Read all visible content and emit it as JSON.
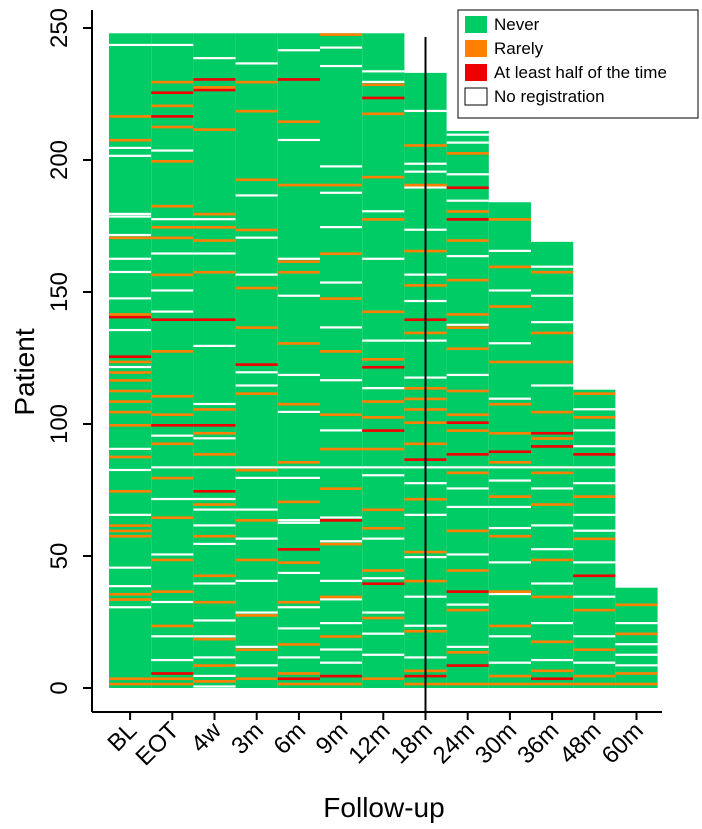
{
  "chart_data": {
    "type": "heatmap",
    "xlabel": "Follow-up",
    "ylabel": "Patient",
    "x_categories": [
      "BL",
      "EOT",
      "4w",
      "3m",
      "6m",
      "9m",
      "12m",
      "18m",
      "24m",
      "30m",
      "36m",
      "48m",
      "60m"
    ],
    "y_ticks": [
      0,
      50,
      100,
      150,
      200,
      250
    ],
    "ylim": [
      0,
      250
    ],
    "patients_per_timepoint": [
      248,
      248,
      248,
      248,
      248,
      248,
      248,
      233,
      211,
      184,
      169,
      113,
      38
    ],
    "reference_line_at": "18m",
    "legend_position": "top-right",
    "legend": [
      {
        "key": "never",
        "label": "Never",
        "color": "#00CC66"
      },
      {
        "key": "rarely",
        "label": "Rarely",
        "color": "#FF8000"
      },
      {
        "key": "half",
        "label": "At least half of the time",
        "color": "#EE0000"
      },
      {
        "key": "none",
        "label": "No registration",
        "color": "#FFFFFF"
      }
    ],
    "cells_rarely": [
      [
        0,
        2
      ],
      [
        0,
        4
      ],
      [
        0,
        34
      ],
      [
        0,
        36
      ],
      [
        0,
        58
      ],
      [
        0,
        60
      ],
      [
        0,
        62
      ],
      [
        0,
        75
      ],
      [
        0,
        88
      ],
      [
        0,
        100
      ],
      [
        0,
        105
      ],
      [
        0,
        109
      ],
      [
        0,
        113
      ],
      [
        0,
        117
      ],
      [
        0,
        120
      ],
      [
        0,
        124
      ],
      [
        0,
        142
      ],
      [
        0,
        171
      ],
      [
        0,
        208
      ],
      [
        0,
        217
      ],
      [
        1,
        2
      ],
      [
        1,
        4
      ],
      [
        1,
        24
      ],
      [
        1,
        37
      ],
      [
        1,
        49
      ],
      [
        1,
        65
      ],
      [
        1,
        80
      ],
      [
        1,
        93
      ],
      [
        1,
        104
      ],
      [
        1,
        111
      ],
      [
        1,
        128
      ],
      [
        1,
        157
      ],
      [
        1,
        171
      ],
      [
        1,
        175
      ],
      [
        1,
        178
      ],
      [
        1,
        183
      ],
      [
        1,
        200
      ],
      [
        1,
        213
      ],
      [
        1,
        221
      ],
      [
        1,
        230
      ],
      [
        2,
        3
      ],
      [
        2,
        9
      ],
      [
        2,
        19
      ],
      [
        2,
        33
      ],
      [
        2,
        43
      ],
      [
        2,
        58
      ],
      [
        2,
        70
      ],
      [
        2,
        89
      ],
      [
        2,
        97
      ],
      [
        2,
        106
      ],
      [
        2,
        130
      ],
      [
        2,
        158
      ],
      [
        2,
        170
      ],
      [
        2,
        175
      ],
      [
        2,
        178
      ],
      [
        2,
        180
      ],
      [
        2,
        212
      ],
      [
        2,
        228
      ],
      [
        3,
        4
      ],
      [
        3,
        15
      ],
      [
        3,
        28
      ],
      [
        3,
        49
      ],
      [
        3,
        64
      ],
      [
        3,
        83
      ],
      [
        3,
        112
      ],
      [
        3,
        137
      ],
      [
        3,
        152
      ],
      [
        3,
        174
      ],
      [
        3,
        193
      ],
      [
        3,
        219
      ],
      [
        3,
        230
      ],
      [
        4,
        2
      ],
      [
        4,
        6
      ],
      [
        4,
        17
      ],
      [
        4,
        33
      ],
      [
        4,
        48
      ],
      [
        4,
        71
      ],
      [
        4,
        86
      ],
      [
        4,
        108
      ],
      [
        4,
        131
      ],
      [
        4,
        158
      ],
      [
        4,
        162
      ],
      [
        4,
        191
      ],
      [
        4,
        215
      ],
      [
        5,
        2
      ],
      [
        5,
        20
      ],
      [
        5,
        35
      ],
      [
        5,
        55
      ],
      [
        5,
        76
      ],
      [
        5,
        91
      ],
      [
        5,
        104
      ],
      [
        5,
        128
      ],
      [
        5,
        148
      ],
      [
        5,
        165
      ],
      [
        5,
        191
      ],
      [
        5,
        248
      ],
      [
        6,
        4
      ],
      [
        6,
        27
      ],
      [
        6,
        45
      ],
      [
        6,
        61
      ],
      [
        6,
        68
      ],
      [
        6,
        91
      ],
      [
        6,
        103
      ],
      [
        6,
        109
      ],
      [
        6,
        125
      ],
      [
        6,
        143
      ],
      [
        6,
        178
      ],
      [
        6,
        194
      ],
      [
        6,
        218
      ],
      [
        6,
        229
      ],
      [
        7,
        2
      ],
      [
        7,
        7
      ],
      [
        7,
        22
      ],
      [
        7,
        41
      ],
      [
        7,
        52
      ],
      [
        7,
        72
      ],
      [
        7,
        93
      ],
      [
        7,
        101
      ],
      [
        7,
        106
      ],
      [
        7,
        110
      ],
      [
        7,
        114
      ],
      [
        7,
        118
      ],
      [
        7,
        135
      ],
      [
        7,
        153
      ],
      [
        7,
        166
      ],
      [
        7,
        191
      ],
      [
        7,
        206
      ],
      [
        8,
        2
      ],
      [
        8,
        14
      ],
      [
        8,
        30
      ],
      [
        8,
        45
      ],
      [
        8,
        60
      ],
      [
        8,
        82
      ],
      [
        8,
        98
      ],
      [
        8,
        104
      ],
      [
        8,
        113
      ],
      [
        8,
        129
      ],
      [
        8,
        137
      ],
      [
        8,
        142
      ],
      [
        8,
        155
      ],
      [
        8,
        170
      ],
      [
        8,
        181
      ],
      [
        8,
        203
      ],
      [
        9,
        2
      ],
      [
        9,
        5
      ],
      [
        9,
        24
      ],
      [
        9,
        37
      ],
      [
        9,
        58
      ],
      [
        9,
        73
      ],
      [
        9,
        86
      ],
      [
        9,
        90
      ],
      [
        9,
        97
      ],
      [
        9,
        108
      ],
      [
        9,
        124
      ],
      [
        9,
        145
      ],
      [
        9,
        160
      ],
      [
        9,
        178
      ],
      [
        10,
        2
      ],
      [
        10,
        7
      ],
      [
        10,
        18
      ],
      [
        10,
        35
      ],
      [
        10,
        49
      ],
      [
        10,
        70
      ],
      [
        10,
        82
      ],
      [
        10,
        95
      ],
      [
        10,
        105
      ],
      [
        10,
        124
      ],
      [
        10,
        135
      ],
      [
        10,
        158
      ],
      [
        11,
        2
      ],
      [
        11,
        5
      ],
      [
        11,
        15
      ],
      [
        11,
        30
      ],
      [
        11,
        57
      ],
      [
        11,
        73
      ],
      [
        11,
        84
      ],
      [
        11,
        103
      ],
      [
        11,
        112
      ],
      [
        12,
        2
      ],
      [
        12,
        6
      ],
      [
        12,
        21
      ],
      [
        12,
        32
      ]
    ],
    "cells_half": [
      [
        0,
        126
      ],
      [
        0,
        141
      ],
      [
        1,
        6
      ],
      [
        1,
        100
      ],
      [
        1,
        140
      ],
      [
        1,
        217
      ],
      [
        1,
        226
      ],
      [
        2,
        75
      ],
      [
        2,
        100
      ],
      [
        2,
        140
      ],
      [
        2,
        227
      ],
      [
        2,
        231
      ],
      [
        3,
        123
      ],
      [
        4,
        4
      ],
      [
        4,
        53
      ],
      [
        4,
        231
      ],
      [
        5,
        5
      ],
      [
        5,
        64
      ],
      [
        5,
        117
      ],
      [
        6,
        40
      ],
      [
        6,
        98
      ],
      [
        6,
        122
      ],
      [
        6,
        224
      ],
      [
        7,
        5
      ],
      [
        7,
        87
      ],
      [
        7,
        140
      ],
      [
        8,
        9
      ],
      [
        8,
        37
      ],
      [
        8,
        89
      ],
      [
        8,
        101
      ],
      [
        8,
        178
      ],
      [
        8,
        190
      ],
      [
        9,
        90
      ],
      [
        10,
        4
      ],
      [
        10,
        97
      ],
      [
        10,
        92
      ],
      [
        11,
        43
      ],
      [
        11,
        89
      ]
    ],
    "cells_none": [
      [
        0,
        31
      ],
      [
        0,
        39
      ],
      [
        0,
        46
      ],
      [
        0,
        66
      ],
      [
        0,
        83
      ],
      [
        0,
        91
      ],
      [
        0,
        122
      ],
      [
        0,
        136
      ],
      [
        0,
        148
      ],
      [
        0,
        158
      ],
      [
        0,
        163
      ],
      [
        0,
        172
      ],
      [
        0,
        179
      ],
      [
        0,
        180
      ],
      [
        0,
        202
      ],
      [
        0,
        205
      ],
      [
        0,
        244
      ],
      [
        1,
        11
      ],
      [
        1,
        20
      ],
      [
        1,
        33
      ],
      [
        1,
        51
      ],
      [
        1,
        72
      ],
      [
        1,
        84
      ],
      [
        1,
        96
      ],
      [
        1,
        143
      ],
      [
        1,
        151
      ],
      [
        1,
        165
      ],
      [
        1,
        178
      ],
      [
        1,
        204
      ],
      [
        1,
        244
      ],
      [
        2,
        1
      ],
      [
        2,
        5
      ],
      [
        2,
        12
      ],
      [
        2,
        20
      ],
      [
        2,
        26
      ],
      [
        2,
        40
      ],
      [
        2,
        55
      ],
      [
        2,
        62
      ],
      [
        2,
        68
      ],
      [
        2,
        72
      ],
      [
        2,
        84
      ],
      [
        2,
        95
      ],
      [
        2,
        108
      ],
      [
        2,
        130
      ],
      [
        2,
        165
      ],
      [
        2,
        178
      ],
      [
        2,
        239
      ],
      [
        3,
        9
      ],
      [
        3,
        16
      ],
      [
        3,
        29
      ],
      [
        3,
        41
      ],
      [
        3,
        57
      ],
      [
        3,
        68
      ],
      [
        3,
        80
      ],
      [
        3,
        84
      ],
      [
        3,
        115
      ],
      [
        3,
        120
      ],
      [
        3,
        157
      ],
      [
        3,
        171
      ],
      [
        3,
        187
      ],
      [
        3,
        237
      ],
      [
        4,
        12
      ],
      [
        4,
        23
      ],
      [
        4,
        31
      ],
      [
        4,
        44
      ],
      [
        4,
        63
      ],
      [
        4,
        64
      ],
      [
        4,
        80
      ],
      [
        4,
        84
      ],
      [
        4,
        105
      ],
      [
        4,
        119
      ],
      [
        4,
        149
      ],
      [
        4,
        163
      ],
      [
        4,
        208
      ],
      [
        4,
        242
      ],
      [
        5,
        10
      ],
      [
        5,
        15
      ],
      [
        5,
        25
      ],
      [
        5,
        34
      ],
      [
        5,
        41
      ],
      [
        5,
        56
      ],
      [
        5,
        65
      ],
      [
        5,
        84
      ],
      [
        5,
        98
      ],
      [
        5,
        117
      ],
      [
        5,
        137
      ],
      [
        5,
        154
      ],
      [
        5,
        175
      ],
      [
        5,
        188
      ],
      [
        5,
        198
      ],
      [
        5,
        236
      ],
      [
        5,
        243
      ],
      [
        6,
        13
      ],
      [
        6,
        21
      ],
      [
        6,
        29
      ],
      [
        6,
        42
      ],
      [
        6,
        57
      ],
      [
        6,
        81
      ],
      [
        6,
        84
      ],
      [
        6,
        114
      ],
      [
        6,
        132
      ],
      [
        6,
        163
      ],
      [
        6,
        181
      ],
      [
        6,
        230
      ],
      [
        6,
        234
      ],
      [
        7,
        12
      ],
      [
        7,
        24
      ],
      [
        7,
        35
      ],
      [
        7,
        50
      ],
      [
        7,
        66
      ],
      [
        7,
        78
      ],
      [
        7,
        84
      ],
      [
        7,
        118
      ],
      [
        7,
        132
      ],
      [
        7,
        147
      ],
      [
        7,
        157
      ],
      [
        7,
        174
      ],
      [
        7,
        190
      ],
      [
        7,
        196
      ],
      [
        7,
        199
      ],
      [
        7,
        219
      ],
      [
        8,
        16
      ],
      [
        8,
        32
      ],
      [
        8,
        51
      ],
      [
        8,
        69
      ],
      [
        8,
        76
      ],
      [
        8,
        84
      ],
      [
        8,
        119
      ],
      [
        8,
        138
      ],
      [
        8,
        164
      ],
      [
        8,
        185
      ],
      [
        8,
        195
      ],
      [
        8,
        207
      ],
      [
        8,
        210
      ],
      [
        9,
        10
      ],
      [
        9,
        20
      ],
      [
        9,
        36
      ],
      [
        9,
        48
      ],
      [
        9,
        61
      ],
      [
        9,
        69
      ],
      [
        9,
        79
      ],
      [
        9,
        84
      ],
      [
        9,
        110
      ],
      [
        9,
        131
      ],
      [
        9,
        151
      ],
      [
        9,
        166
      ],
      [
        10,
        11
      ],
      [
        10,
        25
      ],
      [
        10,
        40
      ],
      [
        10,
        53
      ],
      [
        10,
        62
      ],
      [
        10,
        76
      ],
      [
        10,
        84
      ],
      [
        10,
        115
      ],
      [
        10,
        139
      ],
      [
        10,
        149
      ],
      [
        10,
        160
      ],
      [
        11,
        10
      ],
      [
        11,
        20
      ],
      [
        11,
        35
      ],
      [
        11,
        48
      ],
      [
        11,
        60
      ],
      [
        11,
        66
      ],
      [
        11,
        78
      ],
      [
        11,
        84
      ],
      [
        11,
        92
      ],
      [
        11,
        98
      ],
      [
        11,
        106
      ],
      [
        12,
        9
      ],
      [
        12,
        13
      ],
      [
        12,
        17
      ],
      [
        12,
        25
      ]
    ]
  }
}
